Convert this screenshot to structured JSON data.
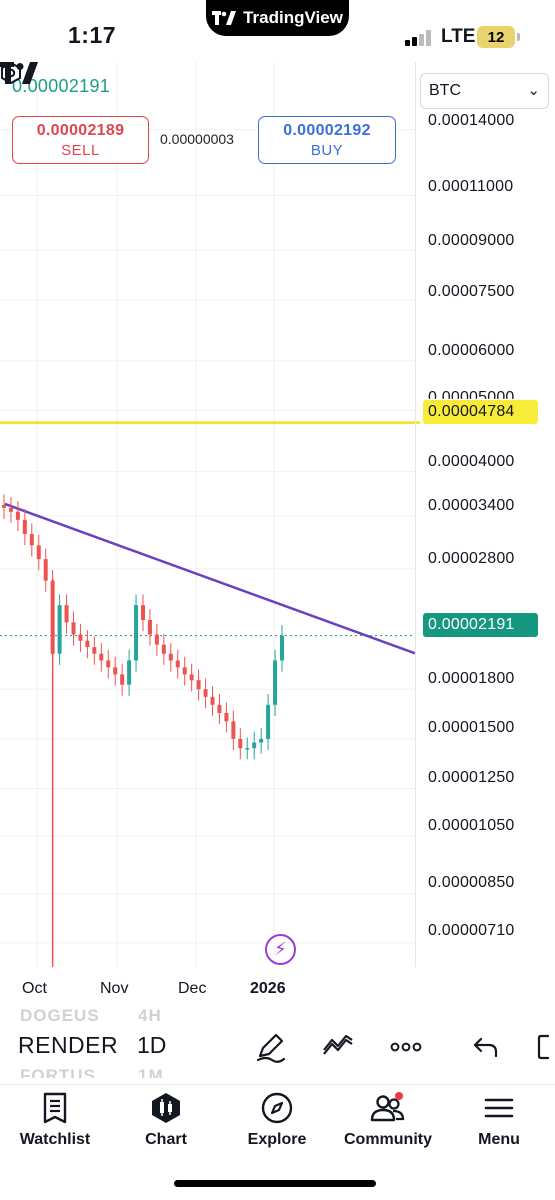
{
  "status_bar": {
    "time": "1:17",
    "island_app": "TradingView",
    "network": "LTE",
    "battery": "12"
  },
  "trade": {
    "last_price": "0.00002191",
    "sell_price": "0.00002189",
    "sell_label": "SELL",
    "spread": "0.00000003",
    "buy_price": "0.00002192",
    "buy_label": "BUY"
  },
  "currency_select": {
    "value": "BTC"
  },
  "price_axis": {
    "labels": [
      "0.00014000",
      "0.00011000",
      "0.00009000",
      "0.00007500",
      "0.00006000",
      "0.00005000",
      "0.00004000",
      "0.00003400",
      "0.00002800",
      "0.00001800",
      "0.00001500",
      "0.00001250",
      "0.00001050",
      "0.00000850",
      "0.00000710"
    ],
    "yellow_level": "0.00004784",
    "current_price": "0.00002191"
  },
  "time_axis": {
    "labels": [
      "Oct",
      "Nov",
      "Dec",
      "2026"
    ]
  },
  "chart_data": {
    "type": "candlestick",
    "symbol": "RENDER",
    "interval": "1D",
    "quote": "BTC",
    "y_scale": "log",
    "ylim": [
      6.5e-06,
      0.000155
    ],
    "x": [
      "Oct",
      "Nov",
      "Dec",
      "2026"
    ],
    "y_ticks": [
      0.00014,
      0.00011,
      9e-05,
      7.5e-05,
      6e-05,
      5e-05,
      4e-05,
      3.4e-05,
      2.8e-05,
      1.8e-05,
      1.5e-05,
      1.25e-05,
      1.05e-05,
      8.5e-06,
      7.1e-06
    ],
    "horizontal_line": {
      "value": 4.784e-05,
      "color": "#f9ec38"
    },
    "last_price_line": {
      "value": 2.191e-05,
      "color": "#16977f"
    },
    "trend_line": {
      "start": 3.55e-05,
      "end": 2.13e-05,
      "color": "#6a3fc0"
    },
    "closes_approx": [
      3.5e-05,
      3.45e-05,
      3.35e-05,
      3.18e-05,
      3.05e-05,
      2.9e-05,
      2.68e-05,
      2.05e-05,
      2.45e-05,
      2.3e-05,
      2.2e-05,
      2.15e-05,
      2.1e-05,
      2.05e-05,
      2e-05,
      1.95e-05,
      1.9e-05,
      1.83e-05,
      2e-05,
      2.45e-05,
      2.32e-05,
      2.2e-05,
      2.12e-05,
      2.05e-05,
      2e-05,
      1.95e-05,
      1.9e-05,
      1.86e-05,
      1.8e-05,
      1.75e-05,
      1.7e-05,
      1.65e-05,
      1.6e-05,
      1.5e-05,
      1.45e-05,
      1.45e-05,
      1.48e-05,
      1.5e-05,
      1.7e-05,
      2e-05,
      2.19e-05
    ],
    "grid": true,
    "colors": {
      "up": "#26a69a",
      "down": "#ef5350"
    }
  },
  "toolbar": {
    "symbols_above": "DOGEUS",
    "symbol": "RENDER",
    "symbols_below": "FORTUS",
    "interval_above": "4H",
    "interval": "1D",
    "interval_below": "1M",
    "tools": [
      "pen-icon",
      "indicator-icon",
      "more-icon",
      "undo-icon"
    ]
  },
  "bottom_nav": {
    "items": [
      {
        "label": "Watchlist",
        "icon": "watchlist-icon"
      },
      {
        "label": "Chart",
        "icon": "chart-icon"
      },
      {
        "label": "Explore",
        "icon": "compass-icon"
      },
      {
        "label": "Community",
        "icon": "community-icon"
      },
      {
        "label": "Menu",
        "icon": "menu-icon"
      }
    ]
  }
}
